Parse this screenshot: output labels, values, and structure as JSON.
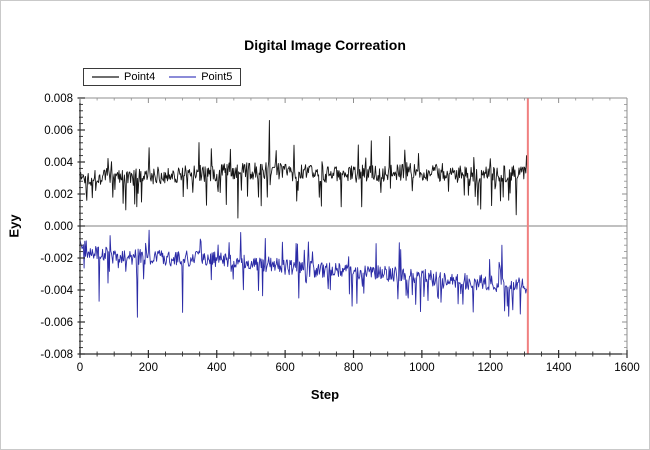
{
  "page": {
    "background": "#ffffff",
    "border_color": "#c9c9c9"
  },
  "chart_data": {
    "type": "line",
    "title": "Digital Image Correation",
    "xlabel": "Step",
    "ylabel": "Eyy",
    "xlim": [
      0,
      1600
    ],
    "ylim": [
      -0.008,
      0.008
    ],
    "x_major_tick": 200,
    "x_minor_tick": 50,
    "y_major_tick": 0.002,
    "y_minor_tick": 0.0004,
    "grid": false,
    "legend_position": "top-left",
    "zero_line": {
      "y": 0,
      "color": "#808080"
    },
    "marker_line": {
      "x": 1310,
      "color": "#f08080",
      "width": 2
    },
    "axis_colors": {
      "left_bottom": "#2b2b2b",
      "top_right": "#8f8f8f"
    },
    "tick_label_color": "#000000",
    "series": [
      {
        "name": "Point4",
        "color": "#151515",
        "x_start": 0,
        "x_end": 1310,
        "step": 2,
        "trend": [
          [
            0,
            0.003
          ],
          [
            60,
            0.0031
          ],
          [
            150,
            0.003
          ],
          [
            250,
            0.0032
          ],
          [
            350,
            0.0033
          ],
          [
            450,
            0.0034
          ],
          [
            550,
            0.0035
          ],
          [
            650,
            0.0033
          ],
          [
            750,
            0.0032
          ],
          [
            850,
            0.0033
          ],
          [
            950,
            0.0034
          ],
          [
            1050,
            0.0033
          ],
          [
            1150,
            0.0032
          ],
          [
            1250,
            0.0033
          ],
          [
            1310,
            0.0035
          ]
        ],
        "noise_amplitude": 0.00055,
        "spike_prob": 0.1,
        "spike_factor": 2.3,
        "spike_down_bias": 0.62,
        "spikes": [
          [
            20,
            0.0016
          ],
          [
            95,
            0.0018
          ],
          [
            180,
            0.0015
          ],
          [
            370,
            0.0013
          ],
          [
            462,
            0.0005
          ],
          [
            553,
            0.0066
          ],
          [
            700,
            0.0018
          ],
          [
            905,
            0.0056
          ],
          [
            1275,
            0.0007
          ],
          [
            1305,
            0.0044
          ]
        ],
        "seed": 1337
      },
      {
        "name": "Point5",
        "color": "#2b2ba6",
        "x_start": 0,
        "x_end": 1310,
        "step": 2,
        "trend": [
          [
            0,
            -0.0012
          ],
          [
            40,
            -0.0017
          ],
          [
            120,
            -0.0019
          ],
          [
            250,
            -0.002
          ],
          [
            400,
            -0.0021
          ],
          [
            500,
            -0.0023
          ],
          [
            620,
            -0.0026
          ],
          [
            750,
            -0.0028
          ],
          [
            900,
            -0.003
          ],
          [
            1050,
            -0.0033
          ],
          [
            1200,
            -0.0036
          ],
          [
            1310,
            -0.0037
          ]
        ],
        "noise_amplitude": 0.0005,
        "spike_prob": 0.09,
        "spike_factor": 2.2,
        "spike_down_bias": 0.7,
        "spikes": [
          [
            55,
            -0.0047
          ],
          [
            167,
            -0.0057
          ],
          [
            300,
            -0.0054
          ],
          [
            470,
            -0.0004
          ],
          [
            640,
            -0.0045
          ],
          [
            830,
            -0.0042
          ],
          [
            1233,
            -0.0012
          ],
          [
            1288,
            -0.0055
          ]
        ],
        "seed": 2024
      }
    ]
  }
}
